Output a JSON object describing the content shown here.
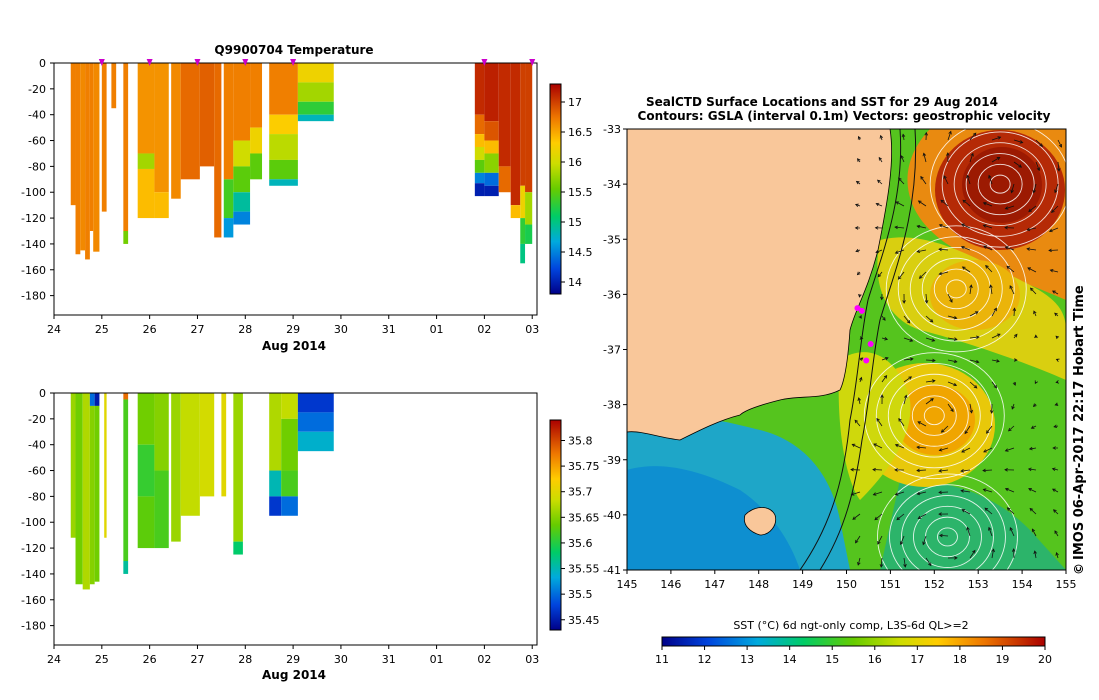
{
  "chart_data": [
    {
      "type": "heatmap",
      "title": "Q9900704  Temperature",
      "xlabel": "Aug 2014",
      "ylabel": "",
      "x_ticks": [
        "24",
        "25",
        "26",
        "27",
        "28",
        "29",
        "30",
        "31",
        "01",
        "02",
        "03"
      ],
      "x_range": [
        24,
        34.1
      ],
      "y_ticks": [
        0,
        -20,
        -40,
        -60,
        -80,
        -100,
        -120,
        -140,
        -160,
        -180
      ],
      "y_range": [
        -195,
        0
      ],
      "profile_markers_day": [
        25.0,
        26.0,
        27.0,
        28.0,
        29.0,
        33.0,
        34.0
      ],
      "colorbar": {
        "ticks": [
          17,
          16.5,
          16,
          15.5,
          15,
          14.5,
          14
        ],
        "range": [
          13.8,
          17.3
        ]
      },
      "profiles": [
        {
          "x0": 24.35,
          "x1": 24.45,
          "max_depth": -110,
          "bands": [
            [
              0,
              -110,
              16.7
            ]
          ]
        },
        {
          "x0": 24.45,
          "x1": 24.55,
          "max_depth": -148,
          "bands": [
            [
              0,
              -148,
              16.7
            ]
          ]
        },
        {
          "x0": 24.55,
          "x1": 24.65,
          "max_depth": -145,
          "bands": [
            [
              0,
              -145,
              16.65
            ]
          ]
        },
        {
          "x0": 24.65,
          "x1": 24.75,
          "max_depth": -152,
          "bands": [
            [
              0,
              -152,
              16.7
            ]
          ]
        },
        {
          "x0": 24.75,
          "x1": 24.82,
          "max_depth": -130,
          "bands": [
            [
              0,
              -130,
              16.7
            ]
          ]
        },
        {
          "x0": 24.82,
          "x1": 24.95,
          "max_depth": -146,
          "bands": [
            [
              0,
              -146,
              16.65
            ]
          ]
        },
        {
          "x0": 25.0,
          "x1": 25.1,
          "max_depth": -115,
          "bands": [
            [
              0,
              -115,
              16.7
            ]
          ]
        },
        {
          "x0": 25.2,
          "x1": 25.3,
          "max_depth": -35,
          "bands": [
            [
              0,
              -35,
              16.7
            ]
          ]
        },
        {
          "x0": 25.45,
          "x1": 25.55,
          "max_depth": -140,
          "bands": [
            [
              0,
              -130,
              16.7
            ],
            [
              -130,
              -140,
              15.6
            ]
          ]
        },
        {
          "x0": 25.75,
          "x1": 26.1,
          "max_depth": -120,
          "bands": [
            [
              0,
              -70,
              16.6
            ],
            [
              -70,
              -82,
              15.8
            ],
            [
              -82,
              -120,
              16.4
            ]
          ]
        },
        {
          "x0": 26.1,
          "x1": 26.4,
          "max_depth": -120,
          "bands": [
            [
              0,
              -100,
              16.6
            ],
            [
              -100,
              -120,
              16.4
            ]
          ]
        },
        {
          "x0": 26.45,
          "x1": 26.65,
          "max_depth": -105,
          "bands": [
            [
              0,
              -105,
              16.65
            ]
          ]
        },
        {
          "x0": 26.65,
          "x1": 27.05,
          "max_depth": -92,
          "bands": [
            [
              0,
              -90,
              16.8
            ]
          ]
        },
        {
          "x0": 27.05,
          "x1": 27.35,
          "max_depth": -80,
          "bands": [
            [
              0,
              -80,
              16.85
            ]
          ]
        },
        {
          "x0": 27.35,
          "x1": 27.5,
          "max_depth": -135,
          "bands": [
            [
              0,
              -135,
              16.8
            ]
          ]
        },
        {
          "x0": 27.55,
          "x1": 27.75,
          "max_depth": -130,
          "bands": [
            [
              0,
              -90,
              16.7
            ],
            [
              -90,
              -120,
              15.4
            ],
            [
              -120,
              -135,
              14.6
            ]
          ]
        },
        {
          "x0": 27.75,
          "x1": 28.1,
          "max_depth": -125,
          "bands": [
            [
              0,
              -60,
              16.7
            ],
            [
              -60,
              -80,
              16.0
            ],
            [
              -80,
              -100,
              15.5
            ],
            [
              -100,
              -115,
              14.9
            ],
            [
              -115,
              -125,
              14.5
            ]
          ]
        },
        {
          "x0": 28.1,
          "x1": 28.35,
          "max_depth": -90,
          "bands": [
            [
              0,
              -50,
              16.7
            ],
            [
              -50,
              -70,
              16.2
            ],
            [
              -70,
              -90,
              15.5
            ]
          ]
        },
        {
          "x0": 28.5,
          "x1": 29.1,
          "max_depth": -95,
          "bands": [
            [
              0,
              -40,
              16.7
            ],
            [
              -40,
              -55,
              16.3
            ],
            [
              -55,
              -75,
              15.9
            ],
            [
              -75,
              -90,
              15.5
            ],
            [
              -90,
              -95,
              14.8
            ]
          ]
        },
        {
          "x0": 29.1,
          "x1": 29.85,
          "max_depth": -45,
          "bands": [
            [
              0,
              -15,
              16.2
            ],
            [
              -15,
              -30,
              15.8
            ],
            [
              -30,
              -40,
              15.3
            ],
            [
              -40,
              -45,
              14.8
            ]
          ]
        },
        {
          "x0": 32.8,
          "x1": 33.0,
          "max_depth": -103,
          "bands": [
            [
              0,
              -40,
              17.1
            ],
            [
              -40,
              -55,
              16.8
            ],
            [
              -55,
              -65,
              16.4
            ],
            [
              -65,
              -75,
              16.0
            ],
            [
              -75,
              -85,
              15.5
            ],
            [
              -85,
              -93,
              14.5
            ],
            [
              -93,
              -103,
              14.0
            ]
          ]
        },
        {
          "x0": 33.0,
          "x1": 33.3,
          "max_depth": -103,
          "bands": [
            [
              0,
              -45,
              17.15
            ],
            [
              -45,
              -60,
              16.9
            ],
            [
              -60,
              -70,
              16.4
            ],
            [
              -70,
              -85,
              15.7
            ],
            [
              -85,
              -95,
              14.4
            ],
            [
              -95,
              -103,
              14.0
            ]
          ]
        },
        {
          "x0": 33.3,
          "x1": 33.55,
          "max_depth": -100,
          "bands": [
            [
              0,
              -80,
              17.1
            ],
            [
              -80,
              -100,
              16.8
            ]
          ]
        },
        {
          "x0": 33.55,
          "x1": 33.75,
          "max_depth": -120,
          "bands": [
            [
              0,
              -110,
              17.1
            ],
            [
              -110,
              -120,
              16.4
            ]
          ]
        },
        {
          "x0": 33.75,
          "x1": 33.85,
          "max_depth": -155,
          "bands": [
            [
              0,
              -95,
              17.0
            ],
            [
              -95,
              -120,
              16.2
            ],
            [
              -120,
              -140,
              15.3
            ],
            [
              -140,
              -155,
              15.0
            ]
          ]
        },
        {
          "x0": 33.85,
          "x1": 34.0,
          "max_depth": -140,
          "bands": [
            [
              0,
              -100,
              17.0
            ],
            [
              -100,
              -125,
              15.8
            ],
            [
              -125,
              -140,
              15.2
            ]
          ]
        }
      ]
    },
    {
      "type": "heatmap",
      "title": "",
      "xlabel": "Aug 2014",
      "ylabel": "",
      "x_ticks": [
        "24",
        "25",
        "26",
        "27",
        "28",
        "29",
        "30",
        "31",
        "01",
        "02",
        "03"
      ],
      "x_range": [
        24,
        34.1
      ],
      "y_ticks": [
        0,
        -20,
        -40,
        -60,
        -80,
        -100,
        -120,
        -140,
        -160,
        -180
      ],
      "y_range": [
        -195,
        0
      ],
      "colorbar": {
        "ticks": [
          35.8,
          35.75,
          35.7,
          35.65,
          35.6,
          35.55,
          35.5,
          35.45
        ],
        "range": [
          35.43,
          35.84
        ]
      },
      "profiles": [
        {
          "x0": 24.35,
          "x1": 24.45,
          "max_depth": -112,
          "bands": [
            [
              0,
              -112,
              35.66
            ]
          ]
        },
        {
          "x0": 24.45,
          "x1": 24.6,
          "max_depth": -148,
          "bands": [
            [
              0,
              -148,
              35.64
            ]
          ]
        },
        {
          "x0": 24.6,
          "x1": 24.75,
          "max_depth": -152,
          "bands": [
            [
              0,
              -152,
              35.67
            ]
          ]
        },
        {
          "x0": 24.75,
          "x1": 24.85,
          "max_depth": -148,
          "bands": [
            [
              0,
              -10,
              35.5
            ],
            [
              -10,
              -148,
              35.65
            ]
          ]
        },
        {
          "x0": 24.85,
          "x1": 24.95,
          "max_depth": -146,
          "bands": [
            [
              0,
              -10,
              35.45
            ],
            [
              -10,
              -146,
              35.64
            ]
          ]
        },
        {
          "x0": 25.05,
          "x1": 25.1,
          "max_depth": -112,
          "bands": [
            [
              0,
              -112,
              35.7
            ]
          ]
        },
        {
          "x0": 25.45,
          "x1": 25.55,
          "max_depth": -140,
          "bands": [
            [
              0,
              -5,
              35.78
            ],
            [
              -5,
              -130,
              35.62
            ],
            [
              -130,
              -140,
              35.56
            ]
          ]
        },
        {
          "x0": 25.75,
          "x1": 26.1,
          "max_depth": -120,
          "bands": [
            [
              0,
              -40,
              35.64
            ],
            [
              -40,
              -80,
              35.61
            ],
            [
              -80,
              -120,
              35.63
            ]
          ]
        },
        {
          "x0": 26.1,
          "x1": 26.4,
          "max_depth": -120,
          "bands": [
            [
              0,
              -60,
              35.65
            ],
            [
              -60,
              -120,
              35.62
            ]
          ]
        },
        {
          "x0": 26.45,
          "x1": 26.65,
          "max_depth": -115,
          "bands": [
            [
              0,
              -115,
              35.66
            ]
          ]
        },
        {
          "x0": 26.65,
          "x1": 27.05,
          "max_depth": -95,
          "bands": [
            [
              0,
              -95,
              35.68
            ]
          ]
        },
        {
          "x0": 27.05,
          "x1": 27.35,
          "max_depth": -80,
          "bands": [
            [
              0,
              -80,
              35.69
            ]
          ]
        },
        {
          "x0": 27.5,
          "x1": 27.6,
          "max_depth": -80,
          "bands": [
            [
              0,
              -80,
              35.7
            ]
          ]
        },
        {
          "x0": 27.75,
          "x1": 27.95,
          "max_depth": -125,
          "bands": [
            [
              0,
              -115,
              35.66
            ],
            [
              -115,
              -125,
              35.58
            ]
          ]
        },
        {
          "x0": 28.5,
          "x1": 28.75,
          "max_depth": -95,
          "bands": [
            [
              0,
              -60,
              35.67
            ],
            [
              -60,
              -80,
              35.55
            ],
            [
              -80,
              -95,
              35.47
            ]
          ]
        },
        {
          "x0": 28.75,
          "x1": 29.1,
          "max_depth": -95,
          "bands": [
            [
              0,
              -20,
              35.68
            ],
            [
              -20,
              -60,
              35.64
            ],
            [
              -60,
              -80,
              35.62
            ],
            [
              -80,
              -95,
              35.5
            ]
          ]
        },
        {
          "x0": 29.1,
          "x1": 29.85,
          "max_depth": -45,
          "bands": [
            [
              0,
              -15,
              35.47
            ],
            [
              -15,
              -30,
              35.5
            ],
            [
              -30,
              -45,
              35.54
            ]
          ]
        }
      ]
    },
    {
      "type": "heatmap",
      "title": "SealCTD Surface Locations and SST for 29 Aug 2014",
      "subtitle": "Contours: GSLA (interval 0.1m) Vectors: geostrophic velocity",
      "xlabel": "",
      "ylabel": "",
      "x_ticks": [
        "145",
        "146",
        "147",
        "148",
        "149",
        "150",
        "151",
        "152",
        "153",
        "154",
        "155"
      ],
      "x_range": [
        145,
        155
      ],
      "y_ticks": [
        "-33",
        "-34",
        "-35",
        "-36",
        "-37",
        "-38",
        "-39",
        "-40",
        "-41"
      ],
      "y_range": [
        -41,
        -33
      ],
      "colorbar": {
        "label": "SST (°C) 6d ngt-only comp, L3S-6d QL>=2",
        "ticks": [
          "11",
          "12",
          "13",
          "14",
          "15",
          "16",
          "17",
          "18",
          "19",
          "20"
        ],
        "range": [
          11,
          20
        ]
      },
      "eddies": [
        {
          "lon": 153.5,
          "lat": -34.0,
          "sst": 19.6
        },
        {
          "lon": 152.5,
          "lat": -35.9,
          "sst": 17.0
        },
        {
          "lon": 152.0,
          "lat": -38.2,
          "sst": 17.6
        },
        {
          "lon": 152.3,
          "lat": -40.4,
          "sst": 15.0
        }
      ],
      "seal_positions": [
        {
          "lon": 150.25,
          "lat": -36.25
        },
        {
          "lon": 150.35,
          "lat": -36.3
        },
        {
          "lon": 150.55,
          "lat": -36.9
        },
        {
          "lon": 150.45,
          "lat": -37.2
        }
      ],
      "side_label": "IMOS 06-Apr-2017 22:17 Hobart Time",
      "copyright": "©",
      "colors": {
        "land": "#f9c79a",
        "seal": "#ff00ff"
      }
    }
  ]
}
